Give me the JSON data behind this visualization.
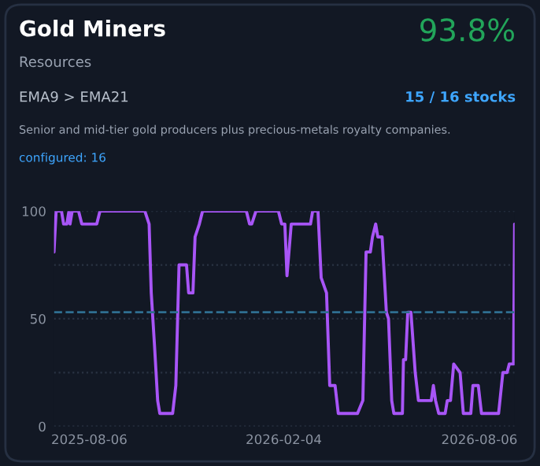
{
  "chart_data": {
    "type": "line",
    "title": "Gold Miners",
    "subtitle": "Resources",
    "annotations": [
      "93.8%",
      "EMA9 > EMA21",
      "15 / 16 stocks",
      "Senior and mid-tier gold producers plus precious-metals royalty companies.",
      "configured: 16"
    ],
    "x": [
      "2025-07-04",
      "2025-07-06",
      "2025-07-11",
      "2025-07-13",
      "2025-07-16",
      "2025-07-18",
      "2025-07-19",
      "2025-07-21",
      "2025-07-27",
      "2025-07-30",
      "2025-08-13",
      "2025-08-16",
      "2025-09-27",
      "2025-10-01",
      "2025-10-03",
      "2025-10-06",
      "2025-10-09",
      "2025-10-11",
      "2025-10-23",
      "2025-10-26",
      "2025-10-29",
      "2025-10-30",
      "2025-11-05",
      "2025-11-07",
      "2025-11-11",
      "2025-11-13",
      "2025-11-17",
      "2025-11-20",
      "2025-12-31",
      "2026-01-03",
      "2026-01-05",
      "2026-01-09",
      "2026-01-30",
      "2026-02-02",
      "2026-02-05",
      "2026-02-07",
      "2026-02-11",
      "2026-03-01",
      "2026-03-03",
      "2026-03-08",
      "2026-03-11",
      "2026-03-16",
      "2026-03-19",
      "2026-03-24",
      "2026-03-27",
      "2026-04-14",
      "2026-04-19",
      "2026-04-22",
      "2026-04-26",
      "2026-04-28",
      "2026-05-01",
      "2026-05-03",
      "2026-05-07",
      "2026-05-11",
      "2026-05-13",
      "2026-05-16",
      "2026-05-18",
      "2026-05-26",
      "2026-05-27",
      "2026-05-29",
      "2026-05-31",
      "2026-06-03",
      "2026-06-07",
      "2026-06-10",
      "2026-06-22",
      "2026-06-24",
      "2026-06-26",
      "2026-06-29",
      "2026-07-05",
      "2026-07-07",
      "2026-07-10",
      "2026-07-13",
      "2026-07-19",
      "2026-07-22",
      "2026-07-29",
      "2026-07-31",
      "2026-08-05",
      "2026-08-08",
      "2026-08-24",
      "2026-08-28",
      "2026-09-01",
      "2026-09-03",
      "2026-09-07",
      "2026-09-08"
    ],
    "series": [
      {
        "color": "#a855f7",
        "values": [
          81,
          100,
          100,
          94,
          94,
          100,
          94,
          100,
          100,
          94,
          94,
          100,
          100,
          94,
          62,
          38,
          12,
          6,
          6,
          19,
          75,
          75,
          75,
          62,
          62,
          88,
          94,
          100,
          100,
          94,
          94,
          100,
          100,
          94,
          94,
          70,
          94,
          94,
          100,
          100,
          69,
          62,
          19,
          19,
          6,
          6,
          12,
          81,
          81,
          88,
          94,
          88,
          88,
          53,
          50,
          12,
          6,
          6,
          31,
          31,
          53,
          53,
          25,
          12,
          12,
          19,
          12,
          6,
          6,
          12,
          12,
          29,
          25,
          6,
          6,
          19,
          19,
          6,
          6,
          25,
          25,
          29,
          29,
          94
        ]
      }
    ],
    "xlim": [
      "2025-07-04",
      "2026-09-08"
    ],
    "xticks": [
      "2025-08-06",
      "2026-02-04",
      "2026-08-06"
    ],
    "ylim": [
      0,
      100
    ],
    "yticks": [
      0,
      {
        "value": 25,
        "label": null
      },
      50,
      {
        "value": 75,
        "label": null
      },
      100
    ],
    "grid": "y",
    "legend": false,
    "marker": "none",
    "line_style": "solid",
    "ref_lines": [
      {
        "axis": "y",
        "value": 53,
        "label": null,
        "color": "#2f6f91",
        "line_style": "dashed"
      }
    ]
  }
}
